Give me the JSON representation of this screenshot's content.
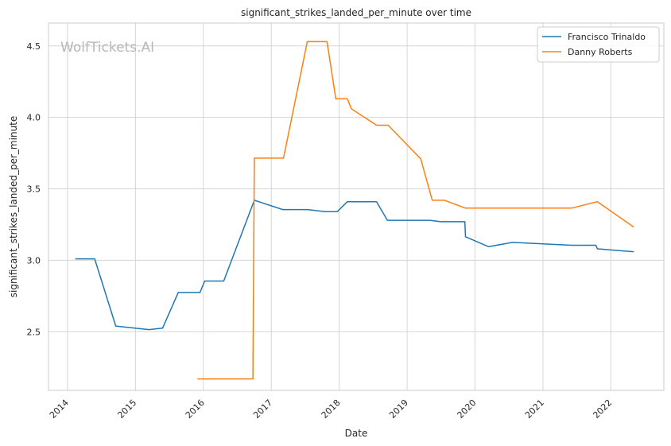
{
  "chart_data": {
    "type": "line",
    "title": "significant_strikes_landed_per_minute over time",
    "xlabel": "Date",
    "ylabel": "significant_strikes_landed_per_minute",
    "xlim": [
      2013.72,
      2022.78
    ],
    "ylim": [
      2.09,
      4.66
    ],
    "x_ticks": [
      2014,
      2015,
      2016,
      2017,
      2018,
      2019,
      2020,
      2021,
      2022
    ],
    "y_ticks": [
      2.5,
      3.0,
      3.5,
      4.0,
      4.5
    ],
    "grid": true,
    "legend_position": "top-right",
    "watermark": "WolfTickets.AI",
    "series": [
      {
        "name": "Francisco Trinaldo",
        "color": "#1f77b4",
        "x": [
          2014.12,
          2014.4,
          2014.71,
          2015.2,
          2015.4,
          2015.63,
          2015.95,
          2016.02,
          2016.3,
          2016.75,
          2017.17,
          2017.53,
          2017.8,
          2017.97,
          2018.12,
          2018.55,
          2018.71,
          2019.33,
          2019.5,
          2019.85,
          2019.86,
          2020.2,
          2020.55,
          2021.42,
          2021.78,
          2021.8,
          2022.33
        ],
        "y": [
          3.01,
          3.01,
          2.54,
          2.515,
          2.525,
          2.775,
          2.775,
          2.855,
          2.855,
          3.42,
          3.355,
          3.355,
          3.34,
          3.34,
          3.41,
          3.41,
          3.28,
          3.28,
          3.27,
          3.27,
          3.165,
          3.095,
          3.125,
          3.105,
          3.105,
          3.08,
          3.06
        ]
      },
      {
        "name": "Danny Roberts",
        "color": "#ff7f0e",
        "x": [
          2015.92,
          2016.73,
          2016.75,
          2017.18,
          2017.53,
          2017.82,
          2017.95,
          2018.12,
          2018.18,
          2018.55,
          2018.72,
          2019.2,
          2019.37,
          2019.55,
          2019.86,
          2021.42,
          2021.8,
          2022.33
        ],
        "y": [
          2.17,
          2.17,
          3.715,
          3.715,
          4.53,
          4.53,
          4.13,
          4.13,
          4.06,
          3.945,
          3.945,
          3.71,
          3.42,
          3.42,
          3.365,
          3.365,
          3.41,
          3.235
        ]
      }
    ]
  }
}
